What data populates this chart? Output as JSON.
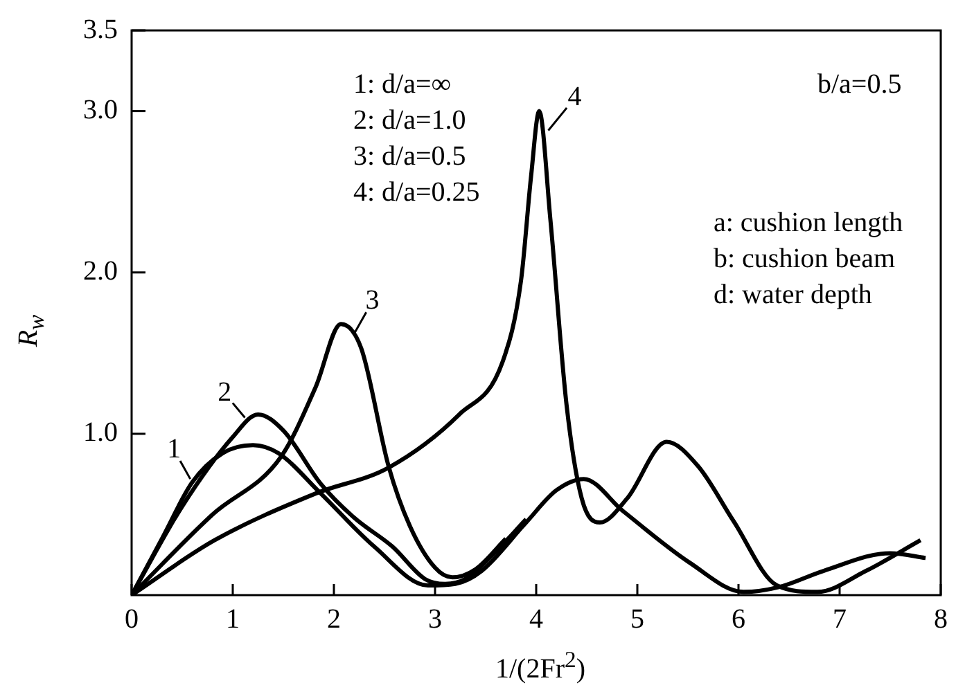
{
  "chart_data": {
    "type": "line",
    "xlabel": "1/(2Fr$^{2}$)",
    "ylabel": "R$_{w}$",
    "xlim": [
      0,
      8
    ],
    "xticks": [
      0,
      1,
      2,
      3,
      4,
      5,
      6,
      7,
      8
    ],
    "ylim": [
      0,
      3.5
    ],
    "yticks": [
      {
        "value": 1,
        "label": "1.0"
      },
      {
        "value": 2,
        "label": "2.0"
      },
      {
        "value": 3,
        "label": "3.0"
      },
      {
        "value": 3.5,
        "label": "3.5"
      }
    ],
    "grid": false,
    "marker": "none",
    "line_style": "solid",
    "annotations": [
      "1: d/a=∞",
      "2: d/a=1.0",
      "3: d/a=0.5",
      "4: d/a=0.25",
      {
        "text": "1",
        "x": 0.58,
        "y": 0.72
      },
      {
        "text": "2",
        "x": 1.12,
        "y": 1.1
      },
      {
        "text": "3",
        "x": 2.2,
        "y": 1.62
      },
      {
        "text": "4",
        "x": 4.12,
        "y": 2.88
      },
      "b/a=0.5",
      "a: cushion length",
      "b: cushion beam",
      "d: water depth"
    ],
    "series": [
      {
        "color": "#000000",
        "x": [
          0,
          0.3,
          0.6,
          0.9,
          1.2,
          1.45,
          1.87,
          2.4,
          2.93,
          3.2,
          3.46,
          3.9,
          4.2,
          4.47,
          4.86,
          5.52,
          6.05,
          6.4,
          6.84,
          7.5,
          7.85
        ],
        "values": [
          0,
          0.35,
          0.7,
          0.88,
          0.93,
          0.88,
          0.63,
          0.3,
          0.06,
          0.07,
          0.15,
          0.45,
          0.65,
          0.72,
          0.52,
          0.2,
          0.02,
          0.05,
          0.15,
          0.26,
          0.23
        ]
      },
      {
        "color": "#000000",
        "x": [
          0,
          0.5,
          1.0,
          1.25,
          1.5,
          1.87,
          2.2,
          2.58,
          2.9,
          3.1,
          3.3,
          3.6,
          3.9
        ],
        "values": [
          0,
          0.55,
          0.98,
          1.12,
          1.02,
          0.69,
          0.48,
          0.3,
          0.1,
          0.07,
          0.1,
          0.27,
          0.47
        ]
      },
      {
        "color": "#000000",
        "x": [
          0,
          0.8,
          1.48,
          1.82,
          2.07,
          2.27,
          2.54,
          2.75,
          3.0,
          3.17,
          3.4,
          3.7
        ],
        "values": [
          0,
          0.5,
          0.86,
          1.29,
          1.68,
          1.53,
          0.8,
          0.43,
          0.17,
          0.11,
          0.16,
          0.35
        ]
      },
      {
        "color": "#000000",
        "x": [
          0,
          0.82,
          1.82,
          2.54,
          3.24,
          3.67,
          3.85,
          3.95,
          4.03,
          4.14,
          4.3,
          4.45,
          4.63,
          4.9,
          5.29,
          5.6,
          5.95,
          6.38,
          6.78,
          7.26,
          7.8
        ],
        "values": [
          0,
          0.34,
          0.63,
          0.79,
          1.12,
          1.45,
          1.95,
          2.6,
          3.0,
          2.33,
          1.18,
          0.6,
          0.45,
          0.6,
          0.95,
          0.8,
          0.46,
          0.06,
          0.02,
          0.15,
          0.34
        ]
      }
    ]
  }
}
